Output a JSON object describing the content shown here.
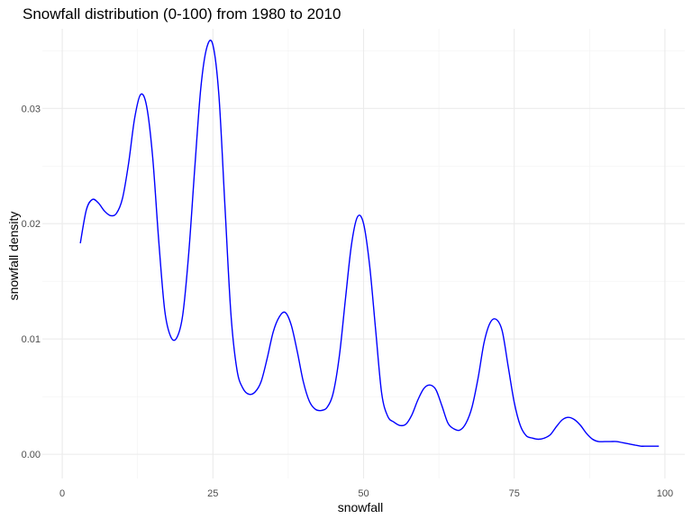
{
  "chart_data": {
    "type": "line",
    "title": "Snowfall distribution (0-100) from 1980 to 2010",
    "xlabel": "snowfall",
    "ylabel": "snowfall density",
    "xlim": [
      -3.3,
      103.3
    ],
    "ylim": [
      -0.0021,
      0.0369
    ],
    "x_ticks": [
      0,
      25,
      50,
      75,
      100
    ],
    "x_tick_labels": [
      "0",
      "25",
      "50",
      "75",
      "100"
    ],
    "y_ticks": [
      0.0,
      0.01,
      0.02,
      0.03
    ],
    "y_tick_labels": [
      "0.00",
      "0.01",
      "0.02",
      "0.03"
    ],
    "grid": true,
    "legend": "none",
    "series": [
      {
        "color": "#0000ff",
        "x": [
          3,
          4,
          5,
          6,
          7,
          8,
          9,
          10,
          11,
          12,
          13,
          14,
          15,
          16,
          17,
          18,
          19,
          20,
          21,
          22,
          23,
          24,
          25,
          26,
          27,
          28,
          29,
          30,
          31,
          32,
          33,
          34,
          35,
          36,
          37,
          38,
          39,
          40,
          41,
          42,
          43,
          44,
          45,
          46,
          47,
          48,
          49,
          50,
          51,
          52,
          53,
          54,
          55,
          56,
          57,
          58,
          59,
          60,
          61,
          62,
          63,
          64,
          65,
          66,
          67,
          68,
          69,
          70,
          71,
          72,
          73,
          74,
          75,
          76,
          77,
          78,
          79,
          80,
          81,
          82,
          83,
          84,
          85,
          86,
          87,
          88,
          89,
          90,
          91,
          92,
          93,
          94,
          95,
          96,
          97,
          98,
          99
        ],
        "y": [
          0.0183,
          0.0212,
          0.0221,
          0.0218,
          0.0211,
          0.0207,
          0.0209,
          0.0222,
          0.0252,
          0.0291,
          0.0312,
          0.0302,
          0.0258,
          0.0186,
          0.0125,
          0.0102,
          0.0101,
          0.0121,
          0.0175,
          0.0249,
          0.0318,
          0.0353,
          0.0355,
          0.0311,
          0.0215,
          0.0121,
          0.0073,
          0.0057,
          0.0052,
          0.0054,
          0.0063,
          0.0083,
          0.0106,
          0.0119,
          0.0123,
          0.0112,
          0.0089,
          0.0063,
          0.0046,
          0.0039,
          0.0038,
          0.0041,
          0.0054,
          0.0086,
          0.0135,
          0.0182,
          0.0206,
          0.02,
          0.0164,
          0.0108,
          0.0053,
          0.0033,
          0.0028,
          0.0025,
          0.0026,
          0.0034,
          0.0047,
          0.0057,
          0.006,
          0.0056,
          0.0042,
          0.0027,
          0.0022,
          0.0021,
          0.0027,
          0.0041,
          0.0066,
          0.0097,
          0.0114,
          0.0117,
          0.0107,
          0.0076,
          0.0045,
          0.0025,
          0.0016,
          0.0014,
          0.0013,
          0.0014,
          0.0017,
          0.0024,
          0.003,
          0.0032,
          0.003,
          0.0025,
          0.0018,
          0.0013,
          0.0011,
          0.0011,
          0.0011,
          0.0011,
          0.001,
          0.0009,
          0.0008,
          0.0007,
          0.0007,
          0.0007,
          0.0007
        ]
      }
    ]
  }
}
